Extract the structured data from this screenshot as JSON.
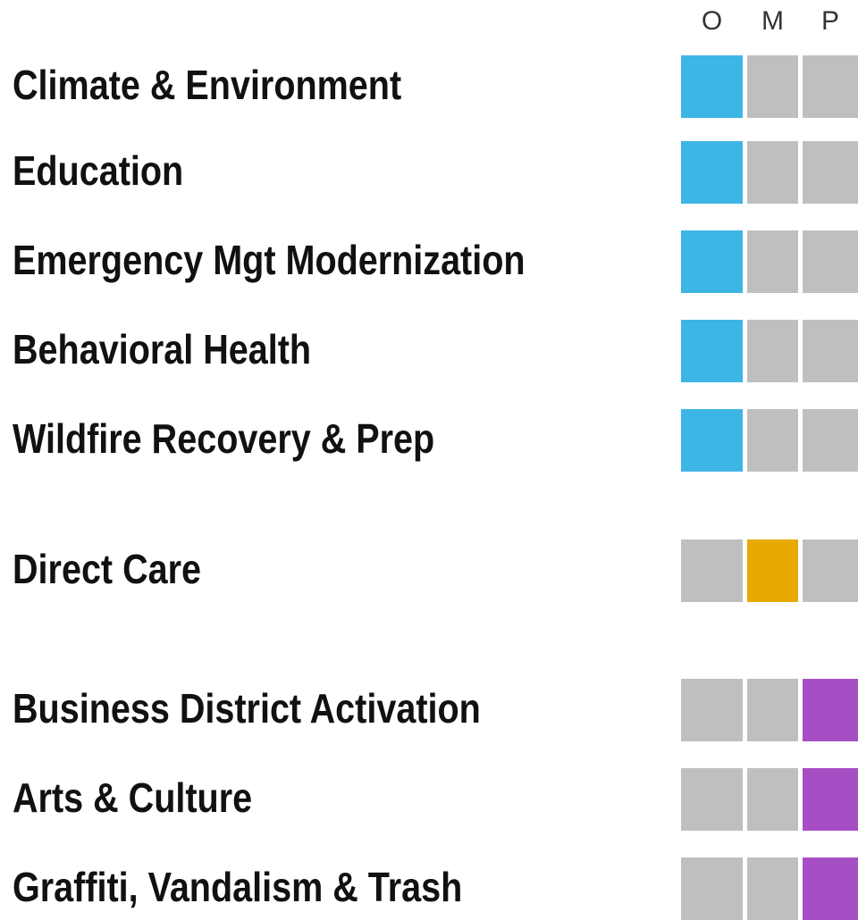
{
  "columns": [
    "O",
    "M",
    "P"
  ],
  "inactive_color": "#bfbfbf",
  "rows": [
    {
      "label": "Climate & Environment",
      "active": 0,
      "color": "#3db5e6"
    },
    {
      "label": "Education",
      "active": 0,
      "color": "#3db5e6"
    },
    {
      "label": "Emergency Mgt Modernization",
      "active": 0,
      "color": "#3db5e6"
    },
    {
      "label": "Behavioral Health",
      "active": 0,
      "color": "#3db5e6"
    },
    {
      "label": "Wildfire Recovery & Prep",
      "active": 0,
      "color": "#3db5e6"
    },
    {
      "label": "Direct Care",
      "active": 1,
      "color": "#e8a900"
    },
    {
      "label": "Business District Activation",
      "active": 2,
      "color": "#a64fc4"
    },
    {
      "label": "Arts & Culture",
      "active": 2,
      "color": "#a64fc4"
    },
    {
      "label": "Graffiti, Vandalism & Trash",
      "active": 2,
      "color": "#a64fc4"
    }
  ]
}
